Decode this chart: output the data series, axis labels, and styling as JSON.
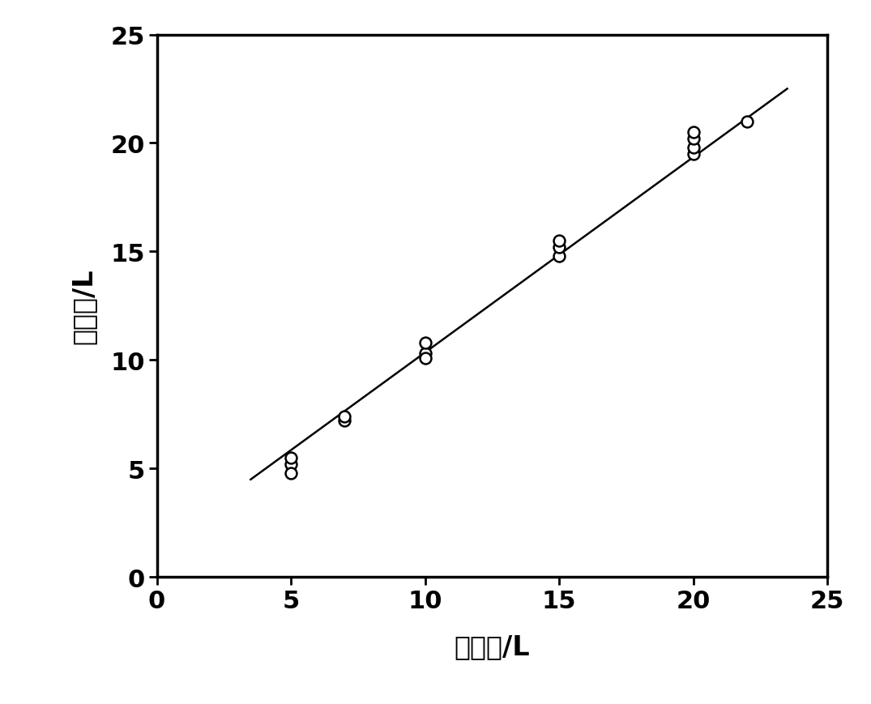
{
  "scatter_x": [
    5,
    5,
    5,
    7,
    7,
    10,
    10,
    10,
    15,
    15,
    15,
    20,
    20,
    20,
    20,
    22
  ],
  "scatter_y": [
    5.2,
    5.5,
    4.8,
    7.2,
    7.4,
    10.3,
    10.8,
    10.1,
    14.8,
    15.2,
    15.5,
    19.5,
    19.8,
    20.2,
    20.5,
    21.0
  ],
  "line_x": [
    3.5,
    23.5
  ],
  "line_y": [
    4.5,
    22.5
  ],
  "xlabel": "实际値/L",
  "ylabel": "测量値/L",
  "xlim": [
    0,
    25
  ],
  "ylim": [
    0,
    25
  ],
  "xticks": [
    0,
    5,
    10,
    15,
    20,
    25
  ],
  "yticks": [
    0,
    5,
    10,
    15,
    20,
    25
  ],
  "marker_color": "black",
  "marker_facecolor": "white",
  "line_color": "black",
  "background_color": "#ffffff",
  "marker_size": 10,
  "line_width": 1.8,
  "xlabel_fontsize": 24,
  "ylabel_fontsize": 24,
  "tick_fontsize": 22
}
